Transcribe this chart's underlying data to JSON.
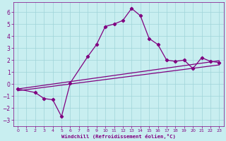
{
  "xlabel": "Windchill (Refroidissement éolien,°C)",
  "bg_color": "#c8eef0",
  "line_color": "#800080",
  "grid_color": "#9fd4d8",
  "xlim": [
    -0.5,
    23.5
  ],
  "ylim": [
    -3.5,
    6.8
  ],
  "yticks": [
    -3,
    -2,
    -1,
    0,
    1,
    2,
    3,
    4,
    5,
    6
  ],
  "xticks": [
    0,
    1,
    2,
    3,
    4,
    5,
    6,
    7,
    8,
    9,
    10,
    11,
    12,
    13,
    14,
    15,
    16,
    17,
    18,
    19,
    20,
    21,
    22,
    23
  ],
  "line1_x": [
    0,
    23
  ],
  "line1_y": [
    -0.4,
    1.95
  ],
  "line2_x": [
    0,
    23
  ],
  "line2_y": [
    -0.55,
    1.6
  ],
  "curve_x": [
    0,
    2,
    3,
    4,
    5,
    6,
    8,
    9,
    10,
    11,
    12,
    13,
    14,
    15,
    16,
    17,
    18,
    19,
    20,
    21,
    22,
    23
  ],
  "curve_y": [
    -0.4,
    -0.7,
    -1.2,
    -1.3,
    -2.7,
    0.1,
    2.3,
    3.3,
    4.8,
    5.0,
    5.3,
    6.3,
    5.7,
    3.8,
    3.3,
    2.0,
    1.9,
    2.0,
    1.3,
    2.2,
    1.9,
    1.8
  ]
}
